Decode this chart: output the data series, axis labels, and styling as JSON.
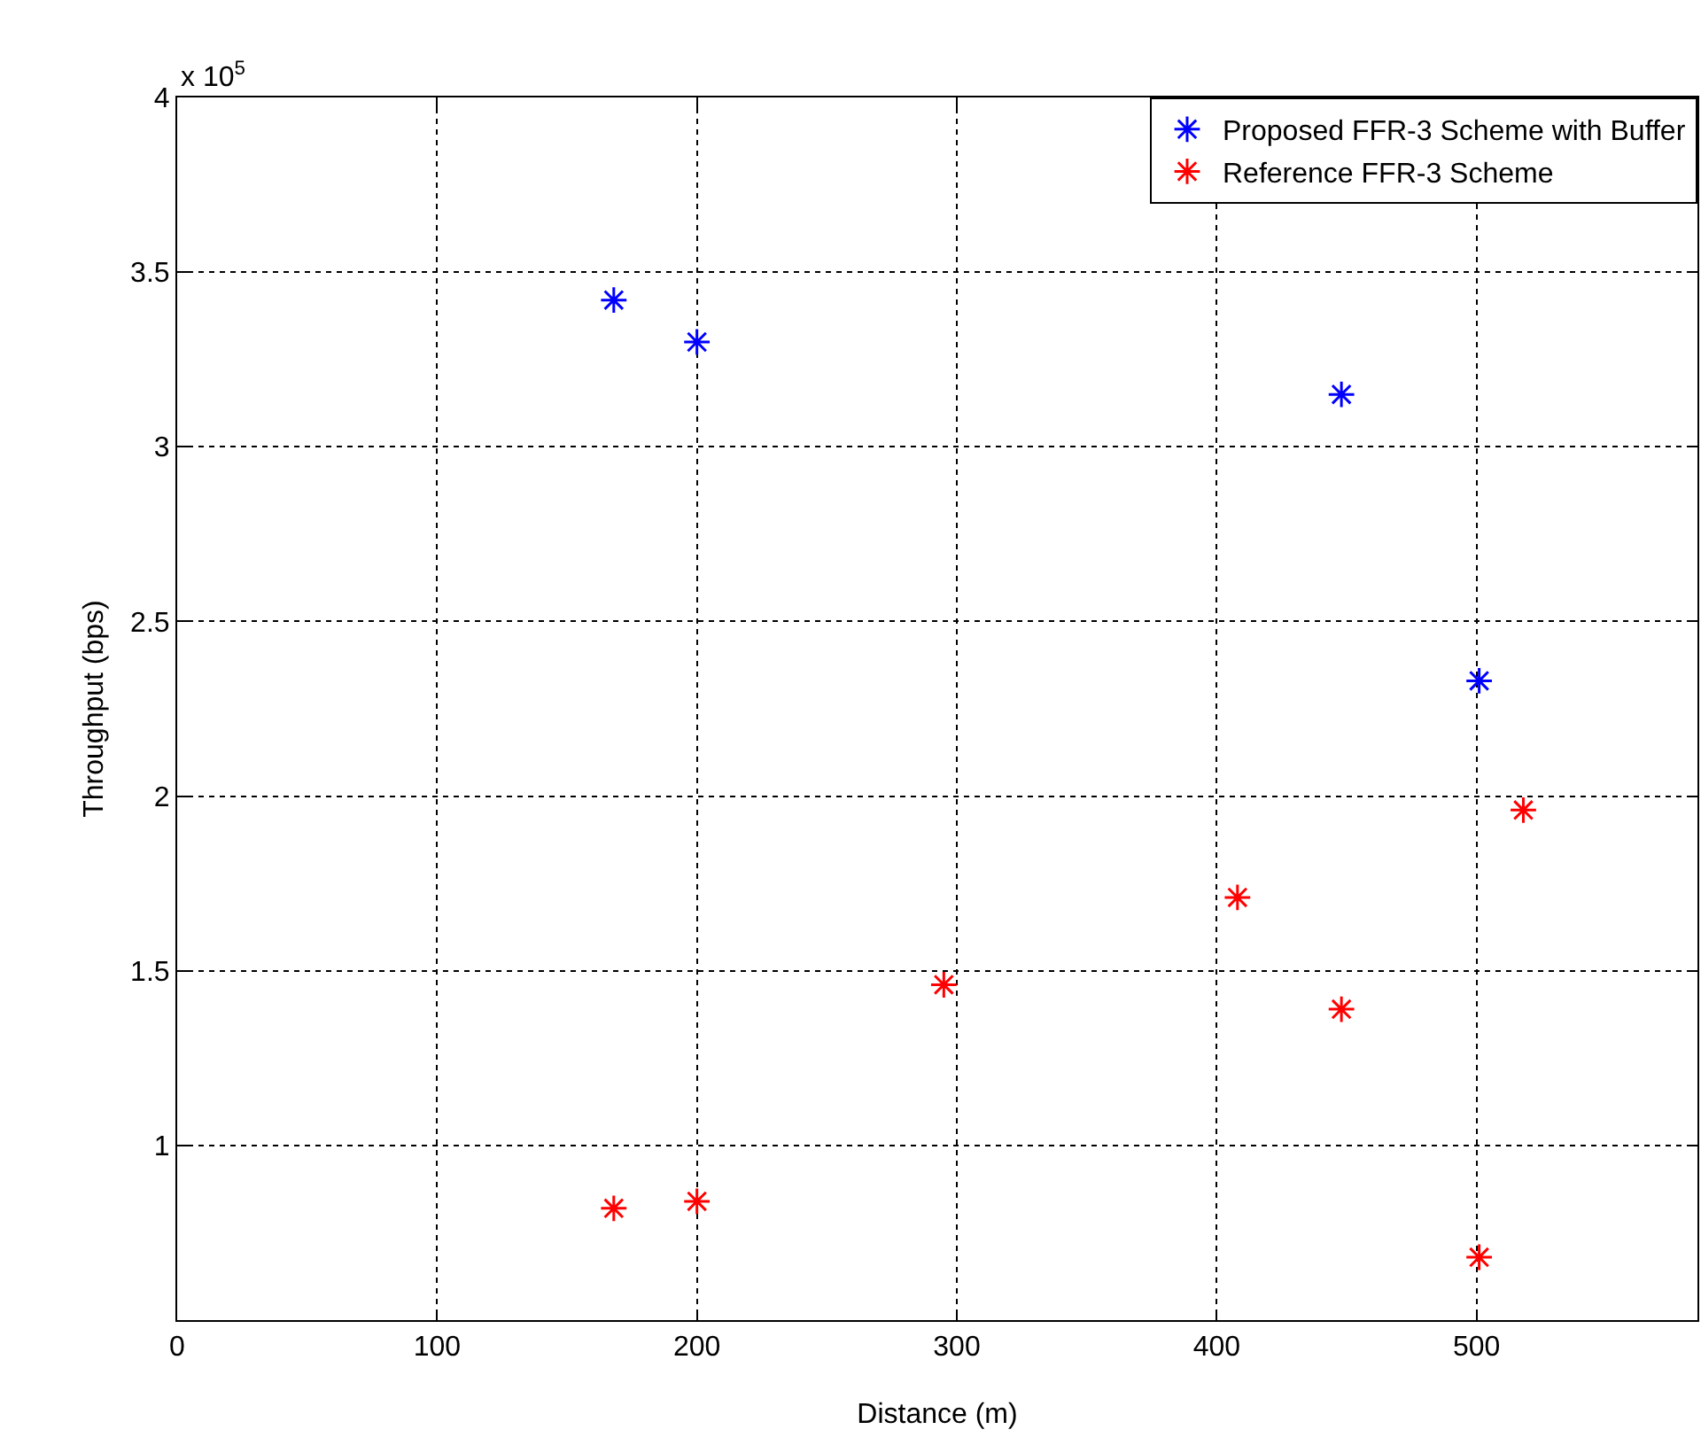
{
  "chart_data": {
    "type": "scatter",
    "xlabel": "Distance (m)",
    "ylabel": "Throughput (bps)",
    "annotations": [
      "x 10$^{5}$"
    ],
    "series": [
      {
        "name": "Proposed FFR-3 Scheme with Buffer",
        "color": "#0000ff",
        "x": [
          168,
          200,
          448,
          501
        ],
        "values": [
          3.42,
          3.3,
          3.15,
          2.33
        ]
      },
      {
        "name": "Reference FFR-3 Scheme",
        "color": "#ff0000",
        "x": [
          168,
          200,
          295,
          408,
          448,
          501,
          518
        ],
        "values": [
          0.82,
          0.84,
          1.46,
          1.71,
          1.39,
          0.68,
          1.96
        ]
      }
    ],
    "xlim": [
      0,
      585
    ],
    "xticks": [
      0,
      100,
      200,
      300,
      400,
      500
    ],
    "ylim": [
      0.5,
      4
    ],
    "yticks": [
      1,
      1.5,
      2,
      2.5,
      3,
      3.5,
      4
    ],
    "grid": true,
    "legend": "top right",
    "marker": "cross"
  }
}
